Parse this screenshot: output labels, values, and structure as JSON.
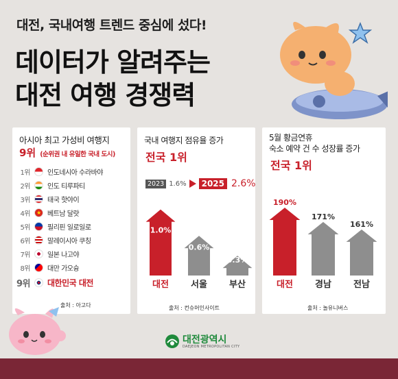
{
  "header": {
    "subtitle": "대전, 국내여행 트렌드 중심에 섰다!",
    "title_line1": "데이터가 알려주는",
    "title_line2": "대전 여행 경쟁력"
  },
  "panel1": {
    "title": "아시아 최고 가성비 여행지",
    "rank_highlight": "9위",
    "rank_note": "(순위권 내 유일한 국내 도시)",
    "items": [
      {
        "rank": "1위",
        "name": "인도네시아 수라바야",
        "flag": "indonesia-flag-icon"
      },
      {
        "rank": "2위",
        "name": "인도 티루파티",
        "flag": "india-flag-icon"
      },
      {
        "rank": "3위",
        "name": "태국 핫야이",
        "flag": "thailand-flag-icon"
      },
      {
        "rank": "4위",
        "name": "베트남 달랏",
        "flag": "vietnam-flag-icon"
      },
      {
        "rank": "5위",
        "name": "필리핀 일로일로",
        "flag": "philippines-flag-icon"
      },
      {
        "rank": "6위",
        "name": "말레이시아 쿠칭",
        "flag": "malaysia-flag-icon"
      },
      {
        "rank": "7위",
        "name": "일본 나고야",
        "flag": "japan-flag-icon"
      },
      {
        "rank": "8위",
        "name": "대만 가오슝",
        "flag": "taiwan-flag-icon"
      }
    ],
    "final_rank": "9위",
    "final_name": "대한민국 대전",
    "source": "출처 : 아고다"
  },
  "panel2": {
    "title": "국내 여행지 점유율 증가",
    "subtitle": "전국 1위",
    "year_from": "2023",
    "value_from": "1.6%",
    "year_to": "2025",
    "value_to": "2.6%",
    "source": "출처 : 컨슈머인사이트"
  },
  "panel3": {
    "title_line1": "5월 황금연휴",
    "title_line2": "숙소 예약 건 수 성장률 증가",
    "subtitle": "전국 1위",
    "source": "출처 : 놀유니버스"
  },
  "chart_data": [
    {
      "type": "bar",
      "categories": [
        "대전",
        "서울",
        "부산"
      ],
      "values": [
        1.0,
        0.6,
        0.3
      ],
      "value_labels": [
        "1.0%",
        "0.6%",
        "0.3%"
      ],
      "title": "국내 여행지 점유율 증가",
      "ylim": [
        0,
        1.1
      ]
    },
    {
      "type": "bar",
      "categories": [
        "대전",
        "경남",
        "전남"
      ],
      "values": [
        190,
        171,
        161
      ],
      "value_labels": [
        "190%",
        "171%",
        "161%"
      ],
      "title": "숙소 예약 건 수 성장률 증가",
      "ylim": [
        100,
        200
      ]
    }
  ],
  "logo": {
    "name": "대전광역시",
    "name_en": "DAEJEON METROPOLITAN CITY"
  },
  "colors": {
    "accent_red": "#c8202a",
    "bar_gray": "#8e8e8e",
    "footer": "#7a2636",
    "logo_green": "#1f8a3c"
  }
}
